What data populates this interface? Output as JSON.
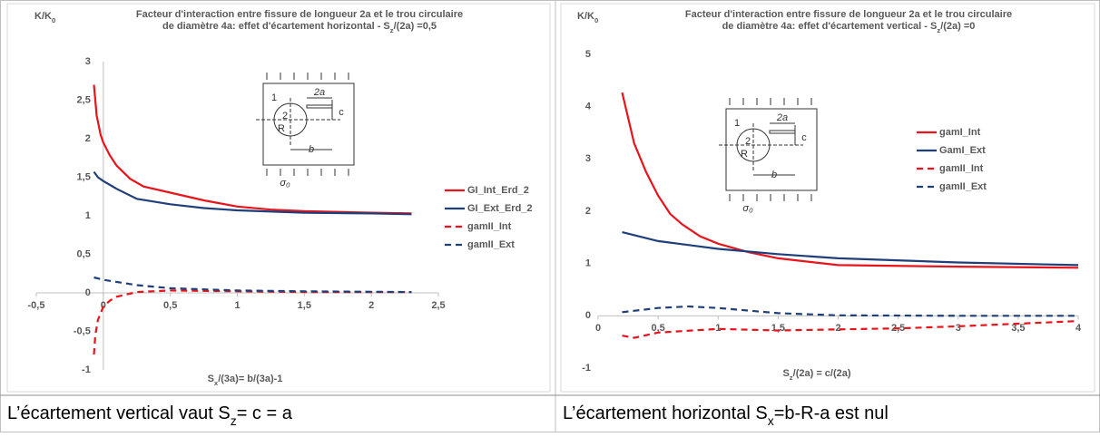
{
  "chart_data": [
    {
      "type": "line",
      "title": [
        [
          "Facteur d'interaction entre fissure de longueur 2a et le trou circulaire"
        ],
        [
          "de diamètre 4a: effet d'écartement horizontal - S",
          "z",
          "/(2a) =0,5"
        ]
      ],
      "y_label": [
        "K/K",
        "0"
      ],
      "x_label": [
        "S",
        "x",
        "/(3a)= b/(3a)-1"
      ],
      "xlim": [
        -0.5,
        2.5
      ],
      "xticks": [
        {
          "value": -0.5,
          "label": "-0,5"
        },
        0,
        {
          "value": 0.5,
          "label": "0,5"
        },
        1,
        {
          "value": 1.5,
          "label": "1,5"
        },
        2,
        {
          "value": 2.5,
          "label": "2,5"
        }
      ],
      "ylim": [
        -1,
        3
      ],
      "yticks": [
        -1,
        {
          "value": -0.5,
          "label": "-0,5"
        },
        0,
        {
          "value": 0.5,
          "label": "0,5"
        },
        1,
        {
          "value": 1.5,
          "label": "1,5"
        },
        2,
        {
          "value": 2.5,
          "label": "2,5"
        },
        3
      ],
      "yaxis_line": true,
      "legend": "right",
      "inset_labels": [
        "1",
        "2a",
        "c",
        "2",
        "R",
        "b",
        "σ₀"
      ],
      "series": [
        {
          "name": "GI_Int_Erd_2",
          "color": "#e8141b",
          "dash": false,
          "x": [
            -0.07,
            -0.05,
            -0.02,
            0,
            0.05,
            0.1,
            0.2,
            0.3,
            0.5,
            0.75,
            1,
            1.25,
            1.5,
            2,
            2.3
          ],
          "values": [
            2.7,
            2.3,
            2.05,
            1.95,
            1.78,
            1.65,
            1.48,
            1.38,
            1.3,
            1.2,
            1.12,
            1.08,
            1.06,
            1.04,
            1.03
          ]
        },
        {
          "name": "GI_Ext_Erd_2",
          "color": "#1f3f7a",
          "dash": false,
          "x": [
            -0.07,
            -0.04,
            0,
            0.1,
            0.25,
            0.5,
            0.75,
            1,
            1.5,
            2,
            2.3
          ],
          "values": [
            1.57,
            1.5,
            1.45,
            1.35,
            1.22,
            1.15,
            1.1,
            1.07,
            1.04,
            1.03,
            1.02
          ]
        },
        {
          "name": "gamII_Int",
          "color": "#e8141b",
          "dash": true,
          "x": [
            -0.07,
            -0.06,
            -0.04,
            0,
            0.05,
            0.1,
            0.25,
            0.5,
            1,
            1.5,
            2.3
          ],
          "values": [
            -0.8,
            -0.55,
            -0.35,
            -0.18,
            -0.1,
            -0.05,
            0.01,
            0.03,
            0.02,
            0.01,
            0.01
          ]
        },
        {
          "name": "gamII_Ext",
          "color": "#1f3f7a",
          "dash": true,
          "x": [
            -0.07,
            0,
            0.25,
            0.5,
            1,
            1.5,
            2.3
          ],
          "values": [
            0.2,
            0.17,
            0.1,
            0.06,
            0.03,
            0.02,
            0.01
          ]
        }
      ]
    },
    {
      "type": "line",
      "title": [
        [
          "Facteur d'interaction entre fissure de longueur 2a et le trou circulaire"
        ],
        [
          "de diamètre 4a: effet d'écartement vertical - S",
          "z",
          "/(2a) =0"
        ]
      ],
      "y_label": [
        "K/K",
        "0"
      ],
      "x_label": [
        "S",
        "z",
        "/(2a) = c/(2a)"
      ],
      "xlim": [
        0,
        4
      ],
      "xticks": [
        0,
        {
          "value": 0.5,
          "label": "0,5"
        },
        1,
        {
          "value": 1.5,
          "label": "1,5"
        },
        2,
        {
          "value": 2.5,
          "label": "2,5"
        },
        3,
        {
          "value": 3.5,
          "label": "3,5"
        },
        4
      ],
      "ylim": [
        -1,
        5
      ],
      "yticks": [
        -1,
        0,
        1,
        2,
        3,
        4,
        5
      ],
      "yaxis_line": false,
      "legend": "right",
      "inset_labels": [
        "1",
        "2a",
        "c",
        "2",
        "R",
        "b",
        "σ₀"
      ],
      "series": [
        {
          "name": "gamI_Int",
          "color": "#e8141b",
          "dash": false,
          "x": [
            0.2,
            0.3,
            0.4,
            0.5,
            0.6,
            0.7,
            0.85,
            1,
            1.25,
            1.5,
            2,
            3,
            4
          ],
          "values": [
            4.27,
            3.3,
            2.75,
            2.3,
            1.95,
            1.75,
            1.52,
            1.38,
            1.22,
            1.1,
            0.97,
            0.94,
            0.92
          ]
        },
        {
          "name": "GamI_Ext",
          "color": "#1f3f7a",
          "dash": false,
          "x": [
            0.2,
            0.5,
            1,
            1.5,
            2,
            3,
            4
          ],
          "values": [
            1.6,
            1.43,
            1.28,
            1.18,
            1.1,
            1.02,
            0.97
          ]
        },
        {
          "name": "gamII_Int",
          "color": "#e8141b",
          "dash": true,
          "x": [
            0.2,
            0.3,
            0.5,
            1,
            1.5,
            2,
            2.5,
            3,
            3.5,
            4
          ],
          "values": [
            -0.38,
            -0.42,
            -0.32,
            -0.25,
            -0.28,
            -0.26,
            -0.24,
            -0.2,
            -0.15,
            -0.1
          ]
        },
        {
          "name": "gamII_Ext",
          "color": "#1f3f7a",
          "dash": true,
          "x": [
            0.2,
            0.5,
            0.75,
            1,
            1.5,
            2,
            3,
            4
          ],
          "values": [
            0.07,
            0.15,
            0.18,
            0.15,
            0.05,
            0.01,
            0,
            0
          ]
        }
      ]
    }
  ],
  "captions": [
    [
      "L’écartement vertical vaut S",
      "z",
      "= c = a"
    ],
    [
      "L’écartement horizontal S",
      "x",
      "=b-R-a est nul"
    ]
  ]
}
